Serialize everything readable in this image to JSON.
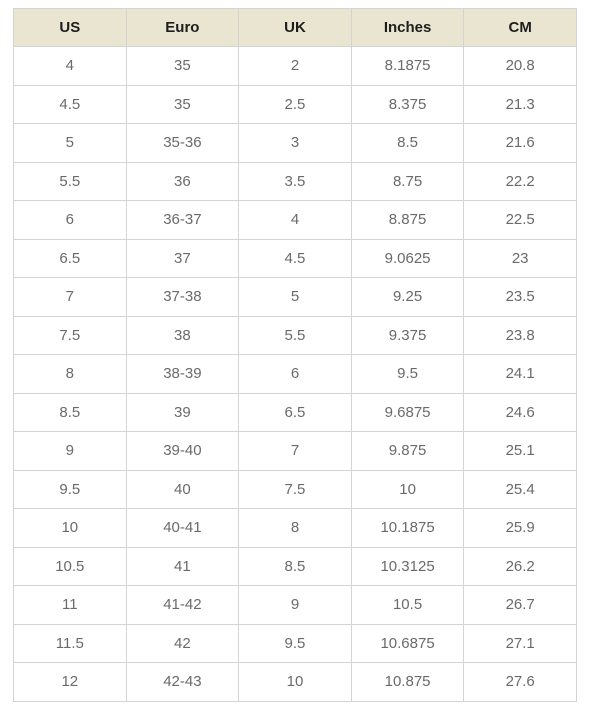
{
  "table": {
    "columns": [
      "US",
      "Euro",
      "UK",
      "Inches",
      "CM"
    ],
    "rows": [
      [
        "4",
        "35",
        "2",
        "8.1875",
        "20.8"
      ],
      [
        "4.5",
        "35",
        "2.5",
        "8.375",
        "21.3"
      ],
      [
        "5",
        "35-36",
        "3",
        "8.5",
        "21.6"
      ],
      [
        "5.5",
        "36",
        "3.5",
        "8.75",
        "22.2"
      ],
      [
        "6",
        "36-37",
        "4",
        "8.875",
        "22.5"
      ],
      [
        "6.5",
        "37",
        "4.5",
        "9.0625",
        "23"
      ],
      [
        "7",
        "37-38",
        "5",
        "9.25",
        "23.5"
      ],
      [
        "7.5",
        "38",
        "5.5",
        "9.375",
        "23.8"
      ],
      [
        "8",
        "38-39",
        "6",
        "9.5",
        "24.1"
      ],
      [
        "8.5",
        "39",
        "6.5",
        "9.6875",
        "24.6"
      ],
      [
        "9",
        "39-40",
        "7",
        "9.875",
        "25.1"
      ],
      [
        "9.5",
        "40",
        "7.5",
        "10",
        "25.4"
      ],
      [
        "10",
        "40-41",
        "8",
        "10.1875",
        "25.9"
      ],
      [
        "10.5",
        "41",
        "8.5",
        "10.3125",
        "26.2"
      ],
      [
        "11",
        "41-42",
        "9",
        "10.5",
        "26.7"
      ],
      [
        "11.5",
        "42",
        "9.5",
        "10.6875",
        "27.1"
      ],
      [
        "12",
        "42-43",
        "10",
        "10.875",
        "27.6"
      ]
    ]
  }
}
